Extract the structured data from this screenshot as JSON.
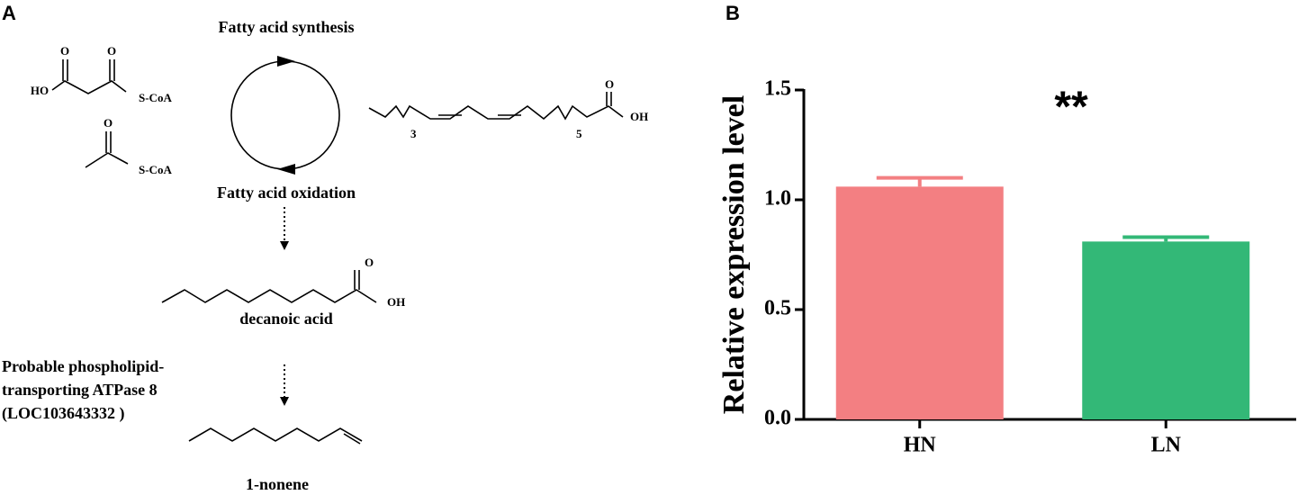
{
  "diagram": {
    "panel_label": "A",
    "cycle_top": "Fatty acid synthesis",
    "cycle_bottom": "Fatty acid oxidation",
    "product1": "decanoic acid",
    "enzyme": [
      "Probable phospholipid-",
      "transporting ATPase 8",
      "(LOC103643332 )"
    ],
    "product2": "1-nonene",
    "atoms": [
      "O",
      "HO",
      "O",
      "S-CoA",
      "O",
      "S-CoA",
      "O",
      "3",
      "5",
      "OH",
      "O",
      "OH"
    ]
  },
  "chart_data": {
    "type": "bar",
    "panel_label": "B",
    "ylabel": "Relative expression level",
    "annotation": "**",
    "categories": [
      "HN",
      "LN"
    ],
    "values": [
      1.06,
      0.81
    ],
    "errors": [
      0.04,
      0.02
    ],
    "colors": [
      "#f37f82",
      "#33b877"
    ],
    "ylim": [
      0,
      1.5
    ],
    "yticks": [
      {
        "value": 0,
        "label": "0.0"
      },
      0.5,
      {
        "value": 1,
        "label": "1.0"
      },
      1.5
    ]
  }
}
